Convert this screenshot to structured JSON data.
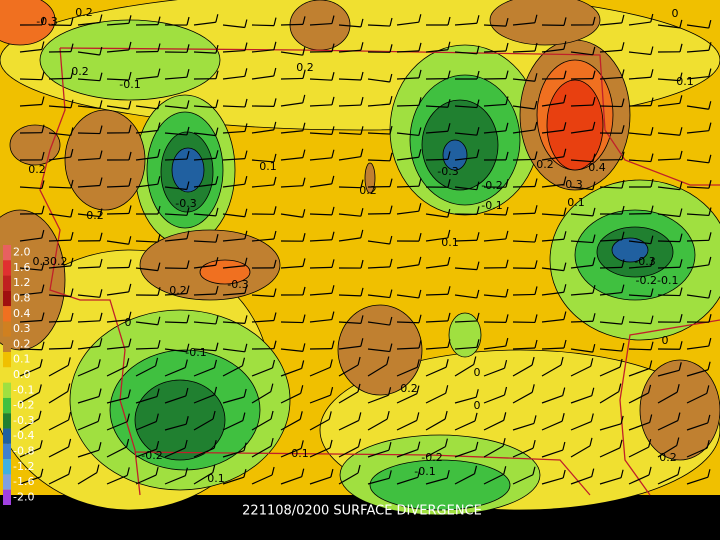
{
  "caption": "221108/0200 SURFACE DIVERGENCE",
  "legend": {
    "labels": [
      "2.0",
      "1.6",
      "1.2",
      "0.8",
      "0.4",
      "0.3",
      "0.2",
      "0.1",
      "0.0",
      "-0.1",
      "-0.2",
      "-0.3",
      "-0.4",
      "-0.8",
      "-1.2",
      "-1.6",
      "-2.0"
    ],
    "colors": [
      "#e86060",
      "#e03030",
      "#c02020",
      "#a01010",
      "#f07020",
      "#d08020",
      "#c08030",
      "#f0c000",
      "#f0e030",
      "#a0e040",
      "#40c040",
      "#208030",
      "#2060a0",
      "#4080d0",
      "#40b0e0",
      "#80a0e0",
      "#a040e0"
    ]
  },
  "contour_labels": [
    "0.2",
    "-0.1",
    "0.2",
    "0.1",
    "0.2",
    "0.1",
    "0.2",
    "-0.3",
    "-0.2",
    "-0.1",
    "0.2",
    "-0.3",
    "0.4",
    "0.1",
    "-0.3",
    "0.2",
    "0.1",
    "0.30.2",
    "-0.3",
    "0.2",
    "-0.3",
    "-0.2-0.1",
    "0",
    "-0.1",
    "0",
    "0",
    "0.2",
    "0",
    "-0.2",
    "0.1",
    "-0.2",
    "-0.1",
    "0.2",
    "0.1",
    "0",
    "-0.3",
    "0.2"
  ]
}
